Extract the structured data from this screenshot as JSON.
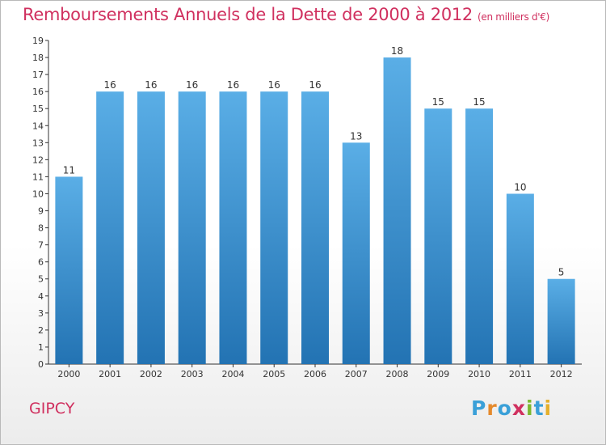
{
  "title": "Remboursements Annuels de la Dette de 2000 à 2012",
  "subtitle": "(en milliers d'€)",
  "place": "GIPCY",
  "logo": {
    "text": "Proxiti",
    "letters": [
      {
        "ch": "P",
        "color": "#3aa0d8"
      },
      {
        "ch": "r",
        "color": "#e58a2c"
      },
      {
        "ch": "o",
        "color": "#3aa0d8"
      },
      {
        "ch": "x",
        "color": "#d0305f"
      },
      {
        "ch": "i",
        "color": "#7cb82f"
      },
      {
        "ch": "t",
        "color": "#3aa0d8"
      },
      {
        "ch": "i",
        "color": "#e5b02c"
      }
    ]
  },
  "colors": {
    "title": "#d0305f",
    "bar_top": "#5aaee6",
    "bar_bottom": "#2373b3",
    "axis": "#333333"
  },
  "chart_data": {
    "type": "bar",
    "categories": [
      "2000",
      "2001",
      "2002",
      "2003",
      "2004",
      "2005",
      "2006",
      "2007",
      "2008",
      "2009",
      "2010",
      "2011",
      "2012"
    ],
    "values": [
      11,
      16,
      16,
      16,
      16,
      16,
      16,
      13,
      18,
      15,
      15,
      10,
      5
    ],
    "ylim": [
      0,
      19
    ],
    "yticks": [
      0,
      1,
      2,
      3,
      4,
      5,
      6,
      7,
      8,
      9,
      10,
      11,
      12,
      13,
      14,
      15,
      16,
      17,
      18,
      19
    ],
    "grid": false,
    "legend": "none",
    "data_labels": true
  }
}
